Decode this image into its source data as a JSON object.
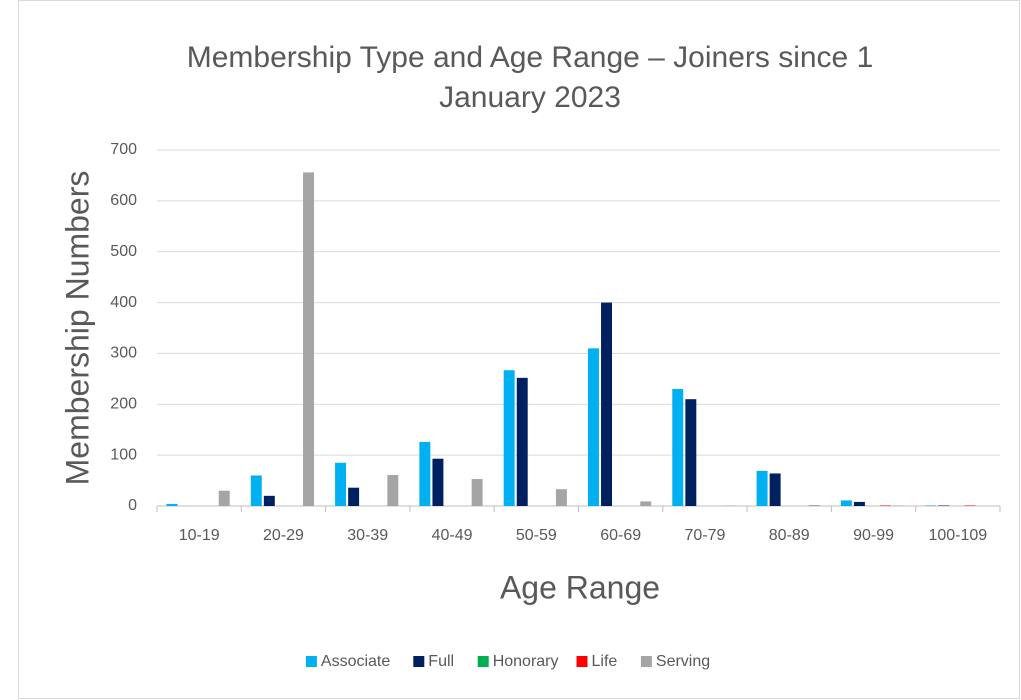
{
  "chart_data": {
    "type": "bar",
    "title": "Membership Type and Age Range – Joiners since 1 January 2023",
    "x_label": "Age Range",
    "y_label": "Membership Numbers",
    "categories": [
      "10-19",
      "20-29",
      "30-39",
      "40-49",
      "50-59",
      "60-69",
      "70-79",
      "80-89",
      "90-99",
      "100-109"
    ],
    "series": [
      {
        "name": "Associate",
        "color": "#00b0f0",
        "values": [
          4,
          60,
          85,
          126,
          267,
          310,
          230,
          69,
          11,
          1
        ]
      },
      {
        "name": "Full",
        "color": "#002060",
        "values": [
          0,
          20,
          36,
          93,
          252,
          400,
          210,
          64,
          8,
          1
        ]
      },
      {
        "name": "Honorary",
        "color": "#00b050",
        "values": [
          0,
          0,
          0,
          0,
          0,
          0,
          0,
          0,
          0,
          0
        ]
      },
      {
        "name": "Life",
        "color": "#ff0000",
        "values": [
          0,
          0,
          0,
          0,
          0,
          0,
          0,
          0,
          1,
          1
        ]
      },
      {
        "name": "Serving",
        "color": "#a5a5a5",
        "values": [
          30,
          656,
          61,
          53,
          33,
          9,
          1,
          2,
          1,
          0
        ]
      }
    ],
    "ylim": [
      0,
      700
    ],
    "yticks": [
      0,
      100,
      200,
      300,
      400,
      500,
      600,
      700
    ],
    "grid": true,
    "legend": "bottom"
  }
}
